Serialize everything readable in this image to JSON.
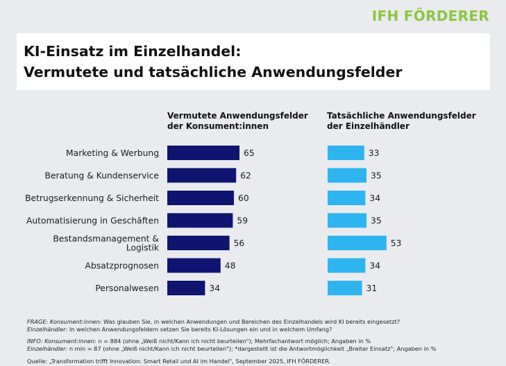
{
  "logo": "IFH FÖRDERER",
  "title": {
    "line1": "KI-Einsatz im Einzelhandel:",
    "line2": "Vermutete und tatsächliche Anwendungsfelder"
  },
  "colors": {
    "consumer_bar": "#0f1470",
    "retailer_bar": "#2eb5f0",
    "logo": "#8cc63f"
  },
  "chart_data": {
    "type": "bar",
    "categories": [
      "Marketing & Werbung",
      "Beratung & Kundenservice",
      "Betrugserkennung & Sicherheit",
      "Automatisierung in Geschäften",
      "Bestandsmanagement & Logistik",
      "Absatzprognosen",
      "Personalwesen"
    ],
    "category_lines": [
      [
        "Marketing & Werbung"
      ],
      [
        "Beratung & Kundenservice"
      ],
      [
        "Betrugserkennung & Sicherheit"
      ],
      [
        "Automatisierung in Geschäften"
      ],
      [
        "Bestandsmanagement &",
        "Logistik"
      ],
      [
        "Absatzprognosen"
      ],
      [
        "Personalwesen"
      ]
    ],
    "series": [
      {
        "name": "Vermutete Anwendungsfelder der Konsument:innen",
        "name_lines": [
          "Vermutete Anwendungsfelder",
          "der Konsument:innen"
        ],
        "values": [
          65,
          62,
          60,
          59,
          56,
          48,
          34
        ]
      },
      {
        "name": "Tatsächliche Anwendungsfelder der Einzelhändler",
        "name_lines": [
          "Tatsächliche Anwendungsfelder",
          "der Einzelhändler"
        ],
        "values": [
          33,
          35,
          34,
          35,
          53,
          34,
          31
        ]
      }
    ],
    "unit": "%",
    "grid": false
  },
  "notes": {
    "frage_label": "FRAGE: Konsument:innen:",
    "frage_text": " Was glauben Sie, in welchen Anwendungen und Bereichen des Einzelhandels wird KI bereits eingesetzt?",
    "frage2_label": "Einzelhändler:",
    "frage2_text": " In welchen Anwendungsfeldern setzen Sie bereits KI-Lösungen ein und in welchem Umfang?",
    "info_label": "INFO: Konsument:innen:",
    "info_text": " n = 884 (ohne „Weiß nicht/Kann ich nicht beurteilen\"); Mehrfachantwort möglich; Angaben in %",
    "info2_label": "Einzelhändler:",
    "info2_text": " n min = 87 (ohne „Weiß nicht/Kann ich nicht beurteilen\"); *dargestellt ist die Antwortmöglichkeit „Breiter Einsatz\"; Angaben in %",
    "quelle": "Quelle: „Transformation trifft Innovation: Smart Retail und AI im Handel\", September 2025, IFH FÖRDERER."
  }
}
